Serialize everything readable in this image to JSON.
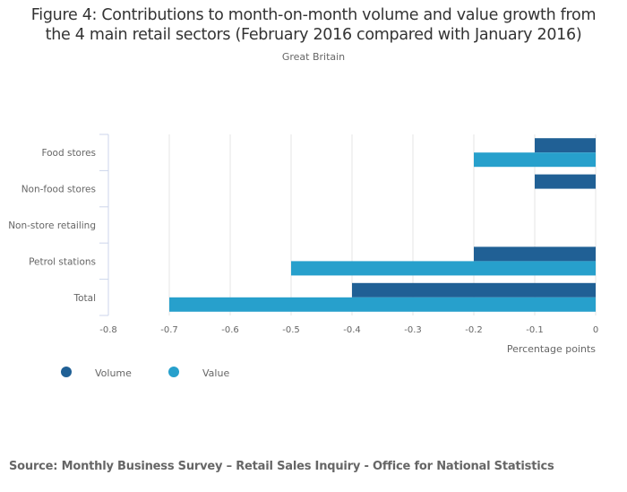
{
  "title_line1": "Figure 4: Contributions to month-on-month volume and value growth from",
  "title_line2": "the 4 main retail sectors (February 2016 compared with January 2016)",
  "subtitle": "Great Britain",
  "source": "Source: Monthly Business Survey – Retail Sales Inquiry - Office for National Statistics",
  "chart_data": {
    "type": "bar",
    "orientation": "horizontal",
    "title": "Figure 4: Contributions to month-on-month volume and value growth from the 4 main retail sectors (February 2016 compared with January 2016)",
    "subtitle": "Great Britain",
    "categories": [
      "Food stores",
      "Non-food stores",
      "Non-store retailing",
      "Petrol stations",
      "Total"
    ],
    "series": [
      {
        "name": "Volume",
        "color": "#206095",
        "values": [
          -0.1,
          -0.1,
          0,
          -0.2,
          -0.4
        ]
      },
      {
        "name": "Value",
        "color": "#27a0cc",
        "values": [
          -0.2,
          0,
          0,
          -0.5,
          -0.7
        ]
      }
    ],
    "xlabel": "Percentage points",
    "ylabel": "",
    "xlim": [
      -0.8,
      0
    ],
    "xticks": [
      "-0.8",
      "-0.7",
      "-0.6",
      "-0.5",
      "-0.4",
      "-0.3",
      "-0.2",
      "-0.1",
      "0"
    ],
    "grid": true,
    "legend_position": "bottom-left"
  }
}
